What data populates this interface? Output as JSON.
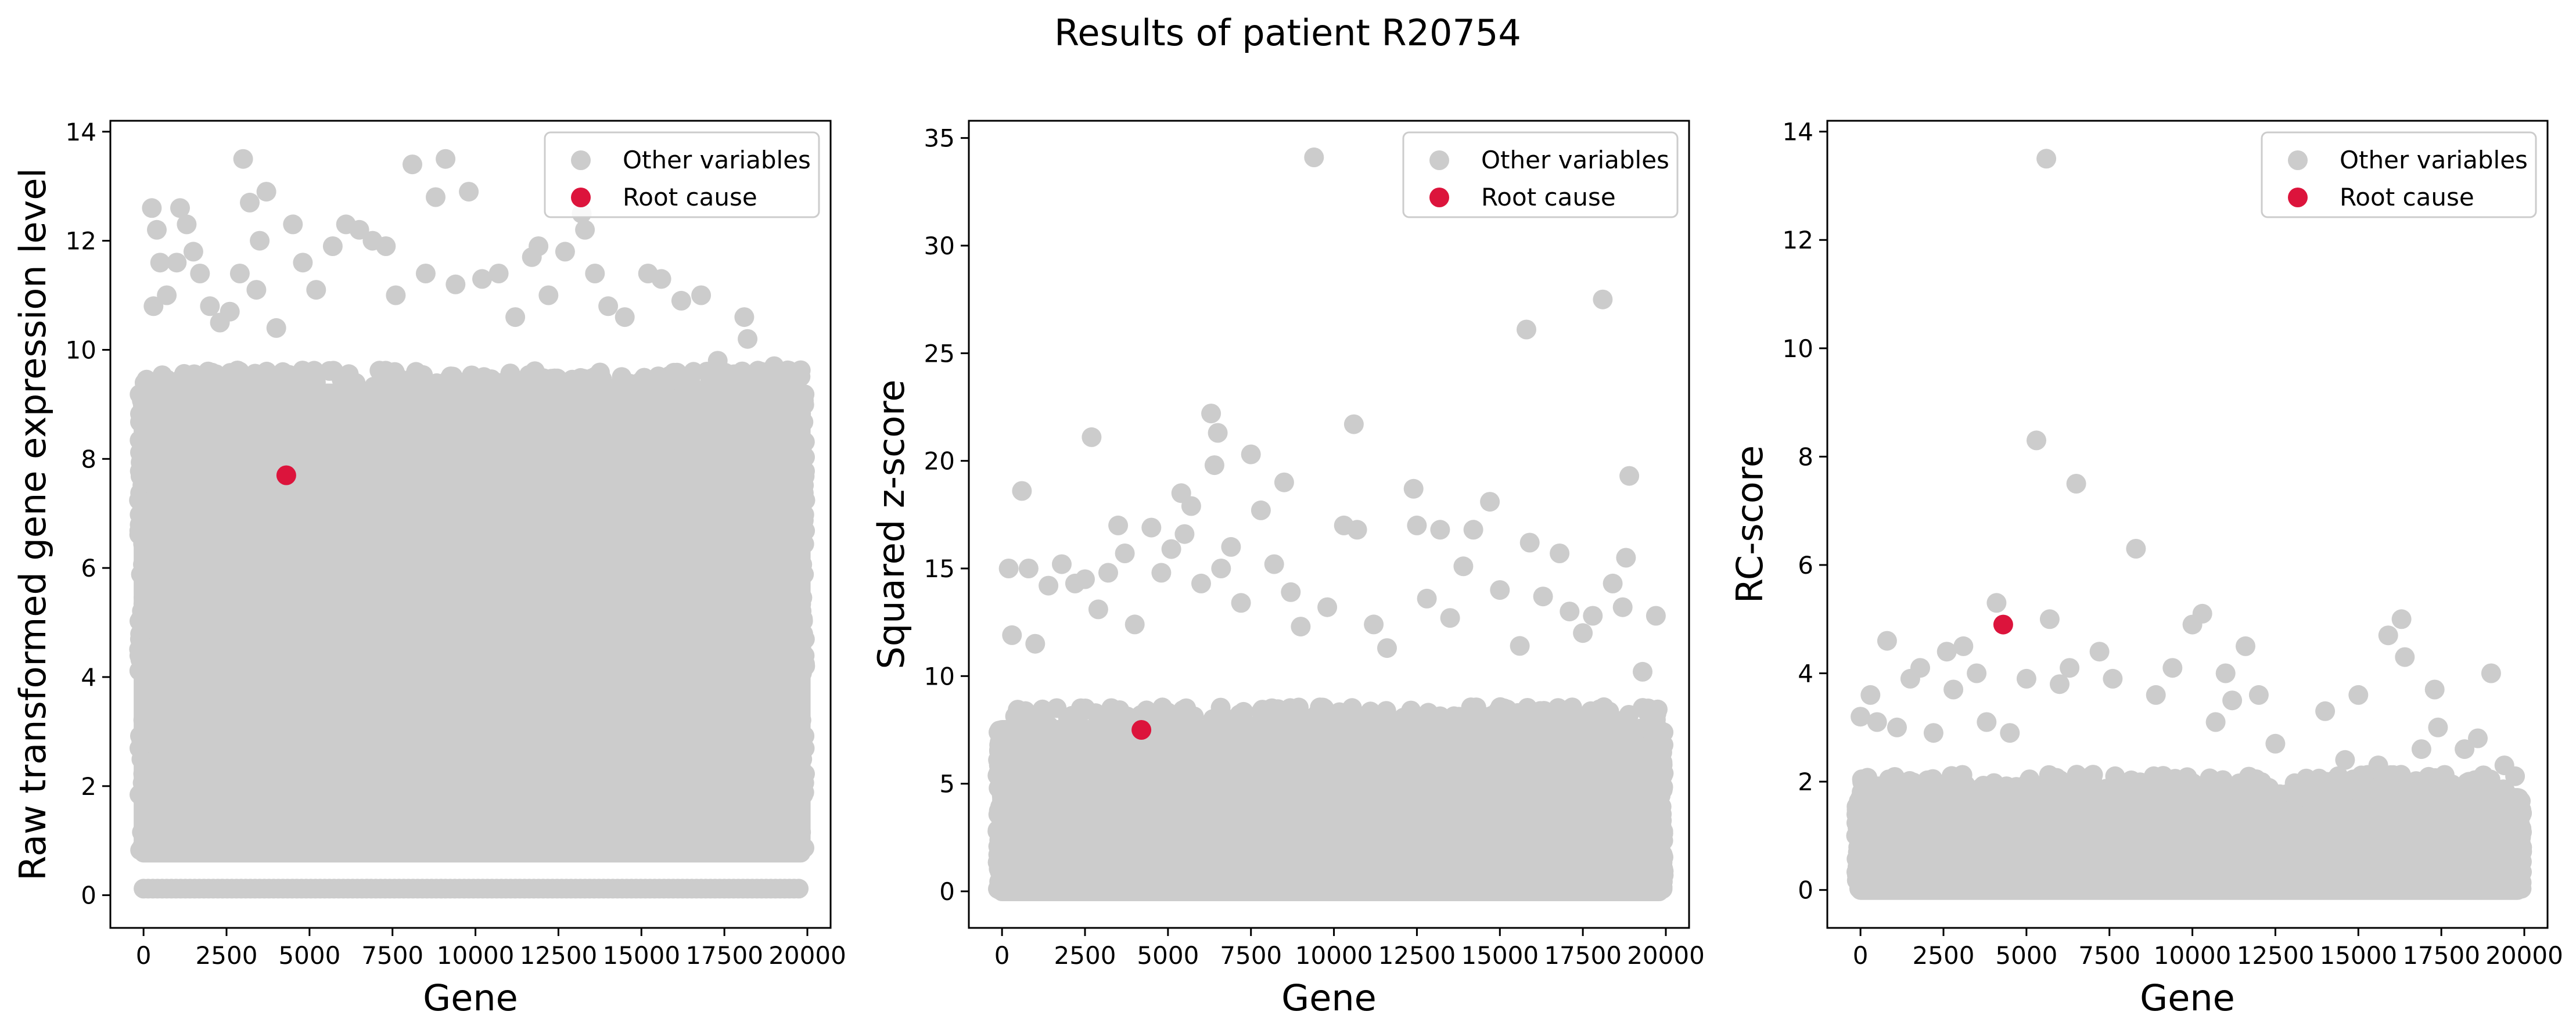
{
  "figure": {
    "title": "Results of patient R20754"
  },
  "colors": {
    "other": "#cccccc",
    "root": "#dc143c",
    "axis": "#000000",
    "legend_border": "#cccccc"
  },
  "chart_data": [
    {
      "type": "scatter",
      "title": "",
      "xlabel": "Gene",
      "ylabel": "Raw transformed gene expression level",
      "xlim": [
        -1000,
        20700
      ],
      "ylim": [
        -0.6,
        14.2
      ],
      "xticks": [
        0,
        2500,
        5000,
        7500,
        10000,
        12500,
        15000,
        17500,
        20000
      ],
      "xtick_labels": [
        "0",
        "2500",
        "5000",
        "7500",
        "10000",
        "12500",
        "15000",
        "17500",
        "20000"
      ],
      "yticks": [
        0,
        2,
        4,
        6,
        8,
        10,
        12,
        14
      ],
      "ytick_labels": [
        "0",
        "2",
        "4",
        "6",
        "8",
        "10",
        "12",
        "14"
      ],
      "legend": [
        "Other variables",
        "Root cause"
      ],
      "legend_loc": "upper right",
      "bands": [
        {
          "series": "Other variables",
          "x": [
            0,
            19800
          ],
          "y": [
            0.78,
            9.2
          ]
        },
        {
          "series": "Other variables",
          "x": [
            0,
            19800
          ],
          "y": [
            0.12,
            0.12
          ]
        }
      ],
      "series": [
        {
          "name": "Other variables",
          "points": [
            [
              250,
              12.6
            ],
            [
              400,
              12.2
            ],
            [
              500,
              11.6
            ],
            [
              700,
              11.0
            ],
            [
              1000,
              11.6
            ],
            [
              1100,
              12.6
            ],
            [
              1300,
              12.3
            ],
            [
              1500,
              11.8
            ],
            [
              1700,
              11.4
            ],
            [
              300,
              10.8
            ],
            [
              2000,
              10.8
            ],
            [
              2300,
              10.5
            ],
            [
              2600,
              10.7
            ],
            [
              3000,
              13.5
            ],
            [
              2900,
              11.4
            ],
            [
              3200,
              12.7
            ],
            [
              3500,
              12.0
            ],
            [
              3700,
              12.9
            ],
            [
              3400,
              11.1
            ],
            [
              4000,
              10.4
            ],
            [
              4500,
              12.3
            ],
            [
              4800,
              11.6
            ],
            [
              5200,
              11.1
            ],
            [
              5700,
              11.9
            ],
            [
              6100,
              12.3
            ],
            [
              6500,
              12.2
            ],
            [
              6900,
              12.0
            ],
            [
              7300,
              11.9
            ],
            [
              7600,
              11.0
            ],
            [
              8100,
              13.4
            ],
            [
              8500,
              11.4
            ],
            [
              8800,
              12.8
            ],
            [
              9100,
              13.5
            ],
            [
              9400,
              11.2
            ],
            [
              9800,
              12.9
            ],
            [
              10200,
              11.3
            ],
            [
              10700,
              11.4
            ],
            [
              11200,
              10.6
            ],
            [
              11700,
              11.7
            ],
            [
              11900,
              11.9
            ],
            [
              12200,
              11.0
            ],
            [
              12700,
              11.8
            ],
            [
              13200,
              12.5
            ],
            [
              13300,
              12.2
            ],
            [
              13600,
              11.4
            ],
            [
              14000,
              10.8
            ],
            [
              14500,
              10.6
            ],
            [
              15200,
              11.4
            ],
            [
              15600,
              11.3
            ],
            [
              16200,
              10.9
            ],
            [
              16800,
              11.0
            ],
            [
              17300,
              9.8
            ],
            [
              18100,
              10.6
            ],
            [
              18200,
              10.2
            ],
            [
              18600,
              9.6
            ],
            [
              19000,
              9.7
            ],
            [
              19600,
              9.5
            ],
            [
              19800,
              7.0
            ]
          ]
        },
        {
          "name": "Root cause",
          "points": [
            [
              4300,
              7.7
            ]
          ]
        }
      ]
    },
    {
      "type": "scatter",
      "title": "",
      "xlabel": "Gene",
      "ylabel": "Squared z-score",
      "xlim": [
        -1000,
        20700
      ],
      "ylim": [
        -1.7,
        35.8
      ],
      "xticks": [
        0,
        2500,
        5000,
        7500,
        10000,
        12500,
        15000,
        17500,
        20000
      ],
      "xtick_labels": [
        "0",
        "2500",
        "5000",
        "7500",
        "10000",
        "12500",
        "15000",
        "17500",
        "20000"
      ],
      "yticks": [
        0,
        5,
        10,
        15,
        20,
        25,
        30,
        35
      ],
      "ytick_labels": [
        "0",
        "5",
        "10",
        "15",
        "20",
        "25",
        "30",
        "35"
      ],
      "legend": [
        "Other variables",
        "Root cause"
      ],
      "legend_loc": "upper right",
      "bands": [
        {
          "series": "Other variables",
          "x": [
            0,
            19800
          ],
          "y": [
            0,
            7.5
          ]
        }
      ],
      "series": [
        {
          "name": "Other variables",
          "points": [
            [
              200,
              15.0
            ],
            [
              300,
              11.9
            ],
            [
              600,
              18.6
            ],
            [
              800,
              15.0
            ],
            [
              1000,
              11.5
            ],
            [
              1400,
              14.2
            ],
            [
              1800,
              15.2
            ],
            [
              2200,
              14.3
            ],
            [
              2500,
              14.5
            ],
            [
              2700,
              21.1
            ],
            [
              2900,
              13.1
            ],
            [
              3200,
              14.8
            ],
            [
              3500,
              17.0
            ],
            [
              3700,
              15.7
            ],
            [
              4000,
              12.4
            ],
            [
              4500,
              16.9
            ],
            [
              4800,
              14.8
            ],
            [
              5100,
              15.9
            ],
            [
              5400,
              18.5
            ],
            [
              5500,
              16.6
            ],
            [
              5700,
              17.9
            ],
            [
              6000,
              14.3
            ],
            [
              6300,
              22.2
            ],
            [
              6400,
              19.8
            ],
            [
              6500,
              21.3
            ],
            [
              6600,
              15.0
            ],
            [
              6900,
              16.0
            ],
            [
              7200,
              13.4
            ],
            [
              7500,
              20.3
            ],
            [
              7800,
              17.7
            ],
            [
              8200,
              15.2
            ],
            [
              8500,
              19.0
            ],
            [
              8700,
              13.9
            ],
            [
              9000,
              12.3
            ],
            [
              9400,
              34.1
            ],
            [
              9800,
              13.2
            ],
            [
              10300,
              17.0
            ],
            [
              10600,
              21.7
            ],
            [
              10700,
              16.8
            ],
            [
              11200,
              12.4
            ],
            [
              11600,
              11.3
            ],
            [
              12400,
              18.7
            ],
            [
              12500,
              17.0
            ],
            [
              12800,
              13.6
            ],
            [
              13200,
              16.8
            ],
            [
              13500,
              12.7
            ],
            [
              13900,
              15.1
            ],
            [
              14200,
              16.8
            ],
            [
              14700,
              18.1
            ],
            [
              15000,
              14.0
            ],
            [
              15600,
              11.4
            ],
            [
              15800,
              26.1
            ],
            [
              15900,
              16.2
            ],
            [
              16300,
              13.7
            ],
            [
              16800,
              15.7
            ],
            [
              17100,
              13.0
            ],
            [
              17500,
              12.0
            ],
            [
              17800,
              12.8
            ],
            [
              18100,
              27.5
            ],
            [
              18400,
              14.3
            ],
            [
              18700,
              13.2
            ],
            [
              18800,
              15.5
            ],
            [
              18900,
              19.3
            ],
            [
              19300,
              10.2
            ],
            [
              19700,
              12.8
            ]
          ]
        },
        {
          "name": "Root cause",
          "points": [
            [
              4200,
              7.5
            ]
          ]
        }
      ]
    },
    {
      "type": "scatter",
      "title": "",
      "xlabel": "Gene",
      "ylabel": "RC-score",
      "xlim": [
        -1000,
        20700
      ],
      "ylim": [
        -0.7,
        14.2
      ],
      "xticks": [
        0,
        2500,
        5000,
        7500,
        10000,
        12500,
        15000,
        17500,
        20000
      ],
      "xtick_labels": [
        "0",
        "2500",
        "5000",
        "7500",
        "10000",
        "12500",
        "15000",
        "17500",
        "20000"
      ],
      "yticks": [
        0,
        2,
        4,
        6,
        8,
        10,
        12,
        14
      ],
      "ytick_labels": [
        "0",
        "2",
        "4",
        "6",
        "8",
        "10",
        "12",
        "14"
      ],
      "legend": [
        "Other variables",
        "Root cause"
      ],
      "legend_loc": "upper right",
      "bands": [
        {
          "series": "Other variables",
          "x": [
            0,
            19800
          ],
          "y": [
            0,
            1.7
          ]
        }
      ],
      "series": [
        {
          "name": "Other variables",
          "points": [
            [
              0,
              3.2
            ],
            [
              300,
              3.6
            ],
            [
              500,
              3.1
            ],
            [
              800,
              4.6
            ],
            [
              1100,
              3.0
            ],
            [
              1500,
              3.9
            ],
            [
              1800,
              4.1
            ],
            [
              2200,
              2.9
            ],
            [
              2600,
              4.4
            ],
            [
              2800,
              3.7
            ],
            [
              3100,
              4.5
            ],
            [
              3500,
              4.0
            ],
            [
              3800,
              3.1
            ],
            [
              4100,
              5.3
            ],
            [
              4500,
              2.9
            ],
            [
              5000,
              3.9
            ],
            [
              5300,
              8.3
            ],
            [
              5600,
              13.5
            ],
            [
              5700,
              5.0
            ],
            [
              6000,
              3.8
            ],
            [
              6300,
              4.1
            ],
            [
              6500,
              7.5
            ],
            [
              7200,
              4.4
            ],
            [
              7600,
              3.9
            ],
            [
              8300,
              6.3
            ],
            [
              8900,
              3.6
            ],
            [
              9400,
              4.1
            ],
            [
              10000,
              4.9
            ],
            [
              10300,
              5.1
            ],
            [
              10700,
              3.1
            ],
            [
              11000,
              4.0
            ],
            [
              11200,
              3.5
            ],
            [
              11600,
              4.5
            ],
            [
              12000,
              3.6
            ],
            [
              12500,
              2.7
            ],
            [
              14000,
              3.3
            ],
            [
              14600,
              2.4
            ],
            [
              15000,
              3.6
            ],
            [
              15600,
              2.3
            ],
            [
              15900,
              4.7
            ],
            [
              16300,
              5.0
            ],
            [
              16400,
              4.3
            ],
            [
              16900,
              2.6
            ],
            [
              17300,
              3.7
            ],
            [
              17400,
              3.0
            ],
            [
              18200,
              2.6
            ],
            [
              18600,
              2.8
            ],
            [
              19000,
              4.0
            ],
            [
              19400,
              2.3
            ],
            [
              19700,
              1.2
            ]
          ]
        },
        {
          "name": "Root cause",
          "points": [
            [
              4300,
              4.9
            ]
          ]
        }
      ]
    }
  ]
}
